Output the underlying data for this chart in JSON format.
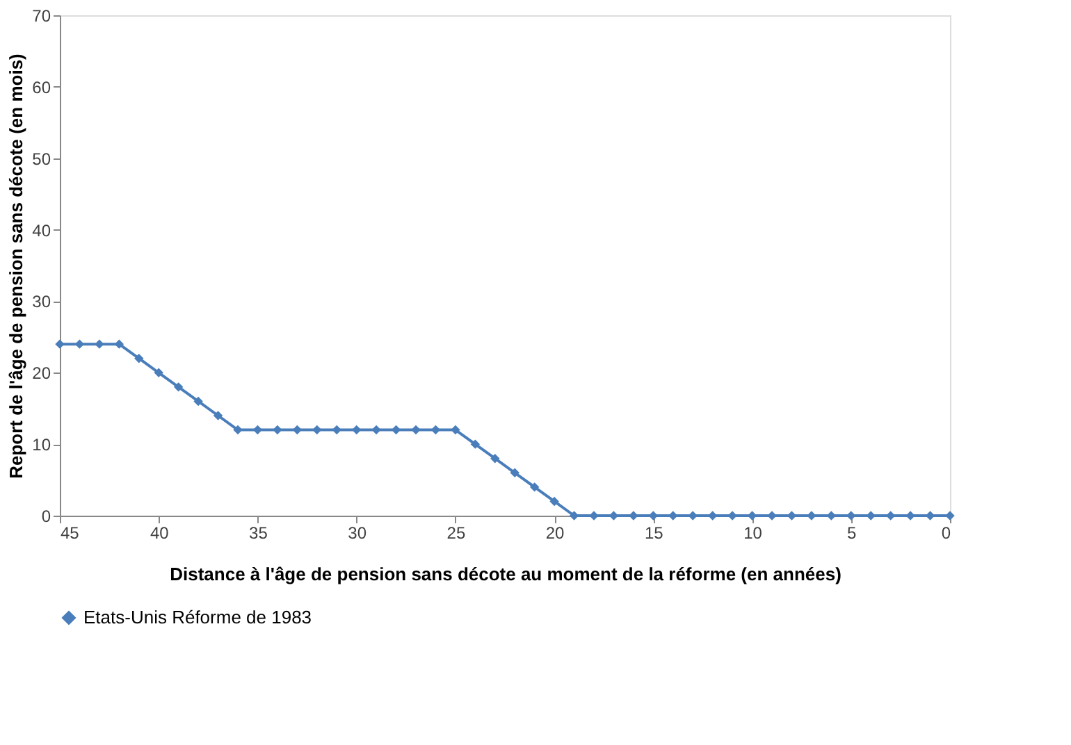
{
  "chart_data": {
    "type": "line",
    "xlabel": "Distance à l'âge de pension sans décote au moment de la réforme (en années)",
    "ylabel": "Report de l'âge de pension sans décote (en mois)",
    "x": [
      45,
      44,
      43,
      42,
      41,
      40,
      39,
      38,
      37,
      36,
      35,
      34,
      33,
      32,
      31,
      30,
      29,
      28,
      27,
      26,
      25,
      24,
      23,
      22,
      21,
      20,
      19,
      18,
      17,
      16,
      15,
      14,
      13,
      12,
      11,
      10,
      9,
      8,
      7,
      6,
      5,
      4,
      3,
      2,
      1,
      0
    ],
    "series": [
      {
        "name": "Etats-Unis Réforme de 1983",
        "color": "#4a7ebb",
        "values": [
          24,
          24,
          24,
          24,
          22,
          20,
          18,
          16,
          14,
          12,
          12,
          12,
          12,
          12,
          12,
          12,
          12,
          12,
          12,
          12,
          12,
          10,
          8,
          6,
          4,
          2,
          0,
          0,
          0,
          0,
          0,
          0,
          0,
          0,
          0,
          0,
          0,
          0,
          0,
          0,
          0,
          0,
          0,
          0,
          0,
          0
        ]
      }
    ],
    "xlim": [
      45,
      0
    ],
    "xticks": [
      45,
      40,
      35,
      30,
      25,
      20,
      15,
      10,
      5,
      0
    ],
    "ylim": [
      0,
      70
    ],
    "yticks": [
      0,
      10,
      20,
      30,
      40,
      50,
      60,
      70
    ],
    "grid": false,
    "legend": "bottom",
    "marker": "diamond",
    "line_style": "solid"
  }
}
